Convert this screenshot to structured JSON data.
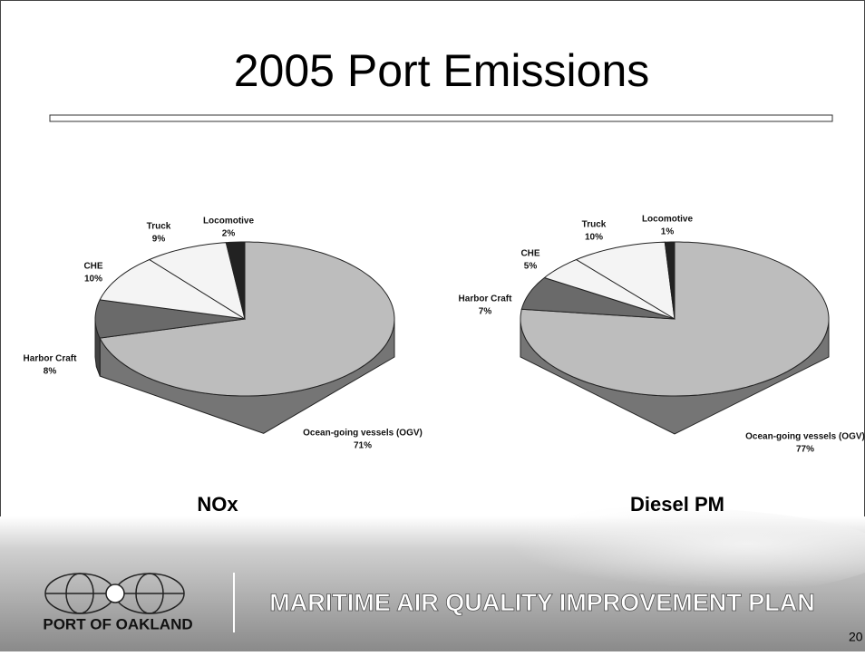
{
  "title": "2005 Port Emissions",
  "chart_data": [
    {
      "type": "pie",
      "title": "NOx",
      "categories": [
        "Ocean-going vessels (OGV)",
        "Harbor Craft",
        "CHE",
        "Truck",
        "Locomotive"
      ],
      "values": [
        71,
        8,
        10,
        9,
        2
      ],
      "value_labels": [
        "71%",
        "8%",
        "10%",
        "9%",
        "2%"
      ],
      "colors": [
        "#bdbdbd",
        "#6a6a6a",
        "#f4f4f4",
        "#f4f4f4",
        "#222222"
      ]
    },
    {
      "type": "pie",
      "title": "Diesel PM",
      "categories": [
        "Ocean-going vessels (OGV)",
        "Harbor Craft",
        "CHE",
        "Truck",
        "Locomotive"
      ],
      "values": [
        77,
        7,
        5,
        10,
        1
      ],
      "value_labels": [
        "77%",
        "7%",
        "5%",
        "10%",
        "1%"
      ],
      "colors": [
        "#bdbdbd",
        "#6a6a6a",
        "#f4f4f4",
        "#f4f4f4",
        "#222222"
      ]
    }
  ],
  "footer": {
    "organization": "PORT OF OAKLAND",
    "plan": "MARITIME AIR QUALITY IMPROVEMENT PLAN",
    "page": "20"
  }
}
